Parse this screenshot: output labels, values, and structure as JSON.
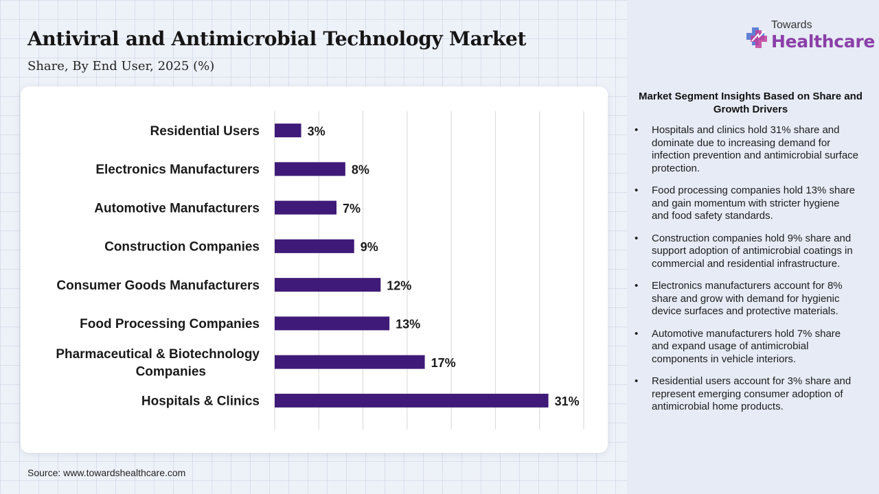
{
  "header": {
    "title": "Antiviral and Antimicrobial Technology Market",
    "subtitle": "Share, By End User, 2025 (%)"
  },
  "source": "Source: www.towardshealthcare.com",
  "brand": {
    "top": "Towards",
    "main": "Healthcare",
    "colors": {
      "purple": "#8b3fa8",
      "blue": "#4a6fd0",
      "pink": "#c23f9a"
    }
  },
  "chart_data": {
    "type": "bar",
    "orientation": "horizontal",
    "categories": [
      "Residential Users",
      "Electronics Manufacturers",
      "Automotive Manufacturers",
      "Construction Companies",
      "Consumer Goods Manufacturers",
      "Food Processing Companies",
      "Pharmaceutical & Biotechnology Companies",
      "Hospitals & Clinics"
    ],
    "values": [
      3,
      8,
      7,
      9,
      12,
      13,
      17,
      31
    ],
    "value_labels": [
      "3%",
      "8%",
      "7%",
      "9%",
      "12%",
      "13%",
      "17%",
      "31%"
    ],
    "xlim": [
      0,
      35
    ],
    "grid": true,
    "bar_color": "#3f1a78",
    "title": "",
    "xlabel": "",
    "ylabel": ""
  },
  "insights": {
    "heading": "Market Segment Insights Based on Share and Growth Drivers",
    "bullet": "•",
    "items": [
      "Hospitals and clinics hold 31% share and dominate due to increasing demand for infection prevention and antimicrobial surface protection.",
      "Food processing companies hold 13% share and gain momentum with stricter hygiene and food safety standards.",
      "Construction companies hold 9% share and support adoption of antimicrobial coatings in commercial and residential infrastructure.",
      "Electronics manufacturers account for 8% share and grow with demand for hygienic device surfaces and protective materials.",
      "Automotive manufacturers hold 7% share and expand usage of antimicrobial components in vehicle interiors.",
      "Residential users account for 3% share and represent emerging consumer adoption of antimicrobial home products."
    ]
  }
}
